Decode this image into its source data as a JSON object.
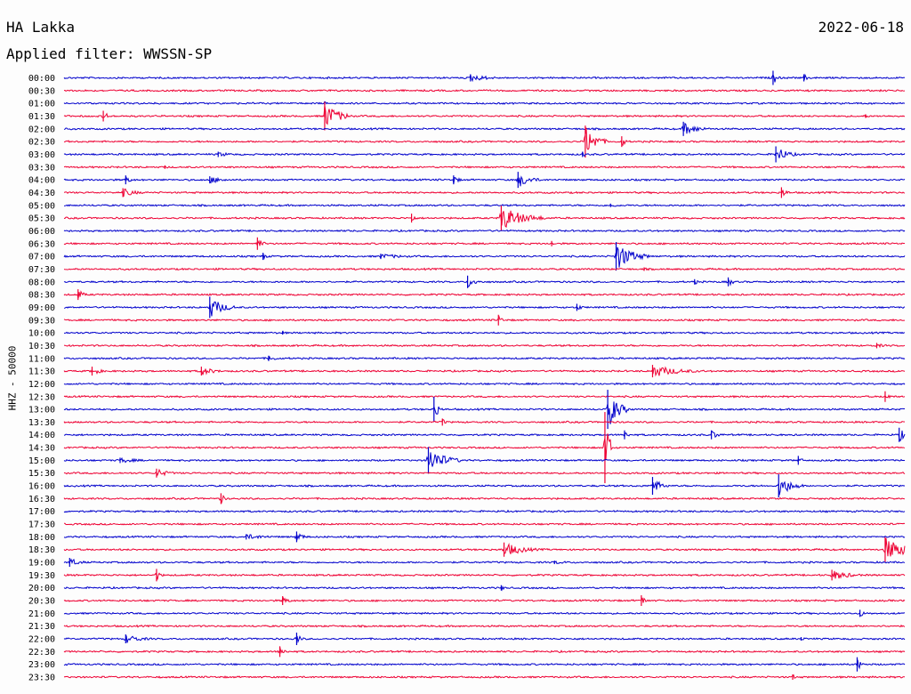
{
  "header": {
    "station": "HA Lakka",
    "date": "2022-06-18",
    "filter_label": "Applied filter: WWSSN-SP"
  },
  "colors": {
    "even_row": "#0000cc",
    "odd_row": "#ee0033"
  },
  "chart_data": {
    "type": "seismogram helicorder",
    "ylabel": "HHZ - 50000",
    "rows": [
      "00:00",
      "00:30",
      "01:00",
      "01:30",
      "02:00",
      "02:30",
      "03:00",
      "03:30",
      "04:00",
      "04:30",
      "05:00",
      "05:30",
      "06:00",
      "06:30",
      "07:00",
      "07:30",
      "08:00",
      "08:30",
      "09:00",
      "09:30",
      "10:00",
      "10:30",
      "11:00",
      "11:30",
      "12:00",
      "12:30",
      "13:00",
      "13:30",
      "14:00",
      "14:30",
      "15:00",
      "15:30",
      "16:00",
      "16:30",
      "17:00",
      "17:30",
      "18:00",
      "18:30",
      "19:00",
      "19:30",
      "20:00",
      "20:30",
      "21:00",
      "21:30",
      "22:00",
      "22:30",
      "23:00",
      "23:30"
    ],
    "row_minutes": 30,
    "events": [
      {
        "row": 0,
        "minute": 14.5,
        "amp": 4,
        "dur": 1.5
      },
      {
        "row": 0,
        "minute": 25.3,
        "amp": 8,
        "dur": 0.3
      },
      {
        "row": 0,
        "minute": 26.4,
        "amp": 4,
        "dur": 0.4
      },
      {
        "row": 1,
        "minute": 9.5,
        "amp": 1,
        "dur": 2
      },
      {
        "row": 2,
        "minute": 9.3,
        "amp": 2,
        "dur": 0.3
      },
      {
        "row": 3,
        "minute": 1.4,
        "amp": 6,
        "dur": 0.4
      },
      {
        "row": 3,
        "minute": 9.3,
        "amp": 16,
        "dur": 1.0
      },
      {
        "row": 3,
        "minute": 28.6,
        "amp": 2,
        "dur": 0.3
      },
      {
        "row": 4,
        "minute": 22.1,
        "amp": 8,
        "dur": 1.0
      },
      {
        "row": 5,
        "minute": 18.6,
        "amp": 18,
        "dur": 0.8
      },
      {
        "row": 5,
        "minute": 19.9,
        "amp": 6,
        "dur": 0.3
      },
      {
        "row": 6,
        "minute": 5.5,
        "amp": 3,
        "dur": 1.0
      },
      {
        "row": 6,
        "minute": 18.5,
        "amp": 3,
        "dur": 0.4
      },
      {
        "row": 6,
        "minute": 25.4,
        "amp": 9,
        "dur": 0.9
      },
      {
        "row": 7,
        "minute": 3.6,
        "amp": 2,
        "dur": 0.4
      },
      {
        "row": 8,
        "minute": 2.2,
        "amp": 5,
        "dur": 0.4
      },
      {
        "row": 8,
        "minute": 5.2,
        "amp": 4,
        "dur": 1.2
      },
      {
        "row": 8,
        "minute": 13.9,
        "amp": 5,
        "dur": 0.4
      },
      {
        "row": 8,
        "minute": 16.2,
        "amp": 9,
        "dur": 0.9
      },
      {
        "row": 9,
        "minute": 2.1,
        "amp": 5,
        "dur": 1.0
      },
      {
        "row": 9,
        "minute": 25.6,
        "amp": 6,
        "dur": 0.4
      },
      {
        "row": 10,
        "minute": 19.5,
        "amp": 2,
        "dur": 1.0
      },
      {
        "row": 11,
        "minute": 12.4,
        "amp": 5,
        "dur": 0.3
      },
      {
        "row": 11,
        "minute": 15.6,
        "amp": 14,
        "dur": 1.6
      },
      {
        "row": 13,
        "minute": 6.9,
        "amp": 7,
        "dur": 0.4
      },
      {
        "row": 13,
        "minute": 17.4,
        "amp": 3,
        "dur": 0.3
      },
      {
        "row": 14,
        "minute": 7.1,
        "amp": 4,
        "dur": 0.3
      },
      {
        "row": 14,
        "minute": 11.3,
        "amp": 3,
        "dur": 2
      },
      {
        "row": 14,
        "minute": 19.7,
        "amp": 16,
        "dur": 1.2
      },
      {
        "row": 15,
        "minute": 20.7,
        "amp": 2,
        "dur": 0.3
      },
      {
        "row": 16,
        "minute": 14.4,
        "amp": 7,
        "dur": 0.6
      },
      {
        "row": 16,
        "minute": 22.5,
        "amp": 3,
        "dur": 0.4
      },
      {
        "row": 16,
        "minute": 23.7,
        "amp": 5,
        "dur": 0.4
      },
      {
        "row": 17,
        "minute": 0.5,
        "amp": 6,
        "dur": 0.4
      },
      {
        "row": 18,
        "minute": 5.2,
        "amp": 12,
        "dur": 1.0
      },
      {
        "row": 18,
        "minute": 18.3,
        "amp": 4,
        "dur": 0.4
      },
      {
        "row": 19,
        "minute": 15.5,
        "amp": 6,
        "dur": 0.3
      },
      {
        "row": 20,
        "minute": 7.8,
        "amp": 2,
        "dur": 0.3
      },
      {
        "row": 21,
        "minute": 29.0,
        "amp": 3,
        "dur": 0.5
      },
      {
        "row": 22,
        "minute": 7.3,
        "amp": 3,
        "dur": 0.8
      },
      {
        "row": 23,
        "minute": 1.0,
        "amp": 5,
        "dur": 0.6
      },
      {
        "row": 23,
        "minute": 4.9,
        "amp": 5,
        "dur": 1.0
      },
      {
        "row": 23,
        "minute": 21.0,
        "amp": 7,
        "dur": 2.0
      },
      {
        "row": 25,
        "minute": 29.3,
        "amp": 6,
        "dur": 0.3
      },
      {
        "row": 26,
        "minute": 13.2,
        "amp": 14,
        "dur": 0.3
      },
      {
        "row": 26,
        "minute": 19.4,
        "amp": 22,
        "dur": 0.8
      },
      {
        "row": 27,
        "minute": 13.5,
        "amp": 4,
        "dur": 0.3
      },
      {
        "row": 28,
        "minute": 20.0,
        "amp": 5,
        "dur": 0.3
      },
      {
        "row": 28,
        "minute": 23.1,
        "amp": 5,
        "dur": 0.6
      },
      {
        "row": 28,
        "minute": 29.8,
        "amp": 8,
        "dur": 0.5
      },
      {
        "row": 29,
        "minute": 19.3,
        "amp": 40,
        "dur": 0.3
      },
      {
        "row": 30,
        "minute": 2.0,
        "amp": 3,
        "dur": 1.5
      },
      {
        "row": 30,
        "minute": 13.0,
        "amp": 15,
        "dur": 1.2
      },
      {
        "row": 30,
        "minute": 26.2,
        "amp": 5,
        "dur": 0.3
      },
      {
        "row": 31,
        "minute": 3.3,
        "amp": 5,
        "dur": 0.9
      },
      {
        "row": 32,
        "minute": 21.0,
        "amp": 10,
        "dur": 0.6
      },
      {
        "row": 32,
        "minute": 25.5,
        "amp": 13,
        "dur": 0.9
      },
      {
        "row": 33,
        "minute": 5.6,
        "amp": 6,
        "dur": 0.3
      },
      {
        "row": 36,
        "minute": 6.5,
        "amp": 3,
        "dur": 2.0
      },
      {
        "row": 36,
        "minute": 8.3,
        "amp": 6,
        "dur": 0.5
      },
      {
        "row": 37,
        "minute": 15.7,
        "amp": 8,
        "dur": 1.5
      },
      {
        "row": 37,
        "minute": 29.3,
        "amp": 14,
        "dur": 1.5
      },
      {
        "row": 38,
        "minute": 0.2,
        "amp": 5,
        "dur": 0.8
      },
      {
        "row": 38,
        "minute": 17.5,
        "amp": 2,
        "dur": 1.5
      },
      {
        "row": 39,
        "minute": 3.3,
        "amp": 7,
        "dur": 0.3
      },
      {
        "row": 39,
        "minute": 27.4,
        "amp": 6,
        "dur": 1.3
      },
      {
        "row": 40,
        "minute": 15.6,
        "amp": 3,
        "dur": 0.3
      },
      {
        "row": 41,
        "minute": 7.8,
        "amp": 5,
        "dur": 0.5
      },
      {
        "row": 41,
        "minute": 20.6,
        "amp": 6,
        "dur": 0.3
      },
      {
        "row": 42,
        "minute": 28.4,
        "amp": 4,
        "dur": 0.4
      },
      {
        "row": 44,
        "minute": 2.2,
        "amp": 5,
        "dur": 1.2
      },
      {
        "row": 44,
        "minute": 8.3,
        "amp": 7,
        "dur": 0.3
      },
      {
        "row": 44,
        "minute": 26.3,
        "amp": 2,
        "dur": 0.5
      },
      {
        "row": 45,
        "minute": 7.7,
        "amp": 6,
        "dur": 0.4
      },
      {
        "row": 46,
        "minute": 28.3,
        "amp": 8,
        "dur": 0.3
      },
      {
        "row": 47,
        "minute": 26.0,
        "amp": 3,
        "dur": 0.3
      }
    ]
  }
}
